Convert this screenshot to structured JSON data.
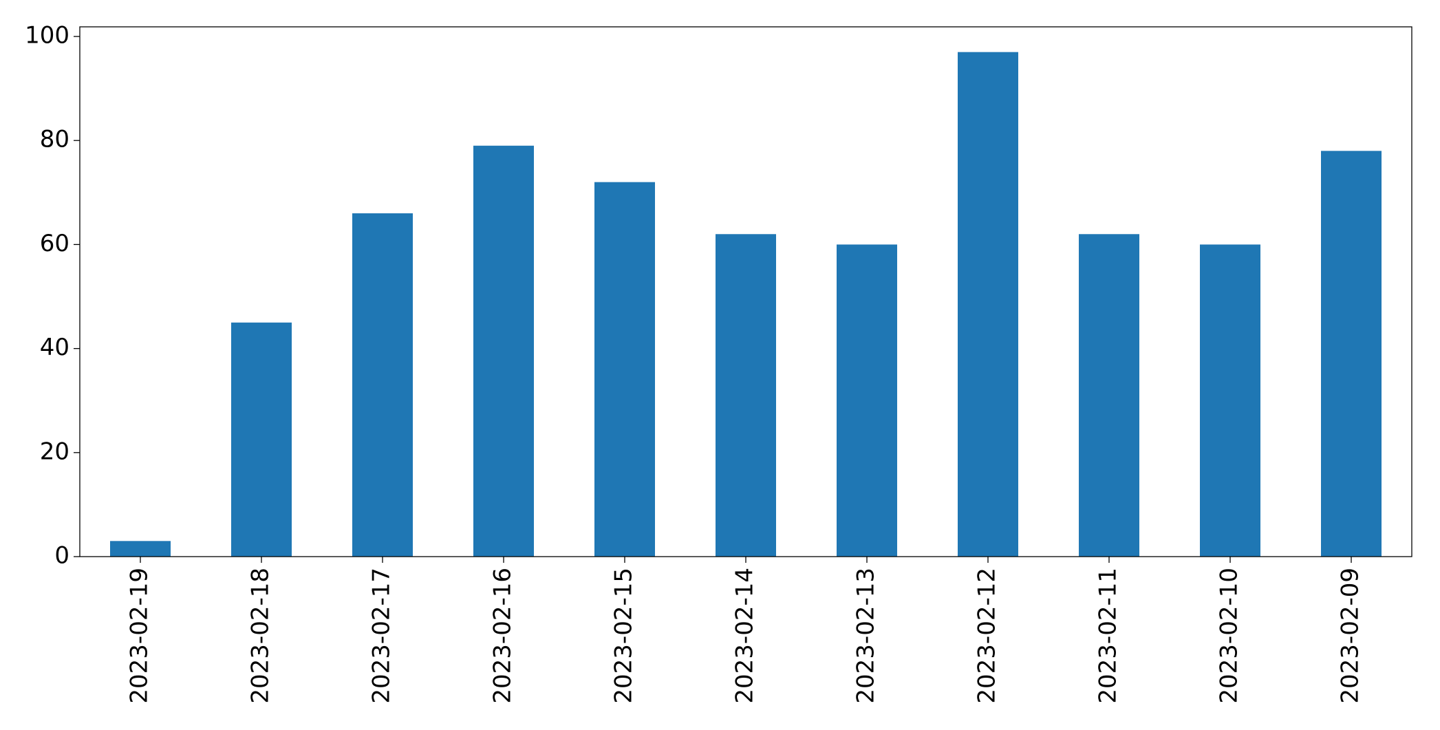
{
  "chart_data": {
    "type": "bar",
    "categories": [
      "2023-02-19",
      "2023-02-18",
      "2023-02-17",
      "2023-02-16",
      "2023-02-15",
      "2023-02-14",
      "2023-02-13",
      "2023-02-12",
      "2023-02-11",
      "2023-02-10",
      "2023-02-09"
    ],
    "values": [
      3,
      45,
      66,
      79,
      72,
      62,
      60,
      97,
      62,
      60,
      78
    ],
    "color": "#1f77b4",
    "ylim": [
      0,
      101.85
    ],
    "yticks": [
      0,
      20,
      40,
      60,
      80,
      100
    ],
    "grid": false
  }
}
